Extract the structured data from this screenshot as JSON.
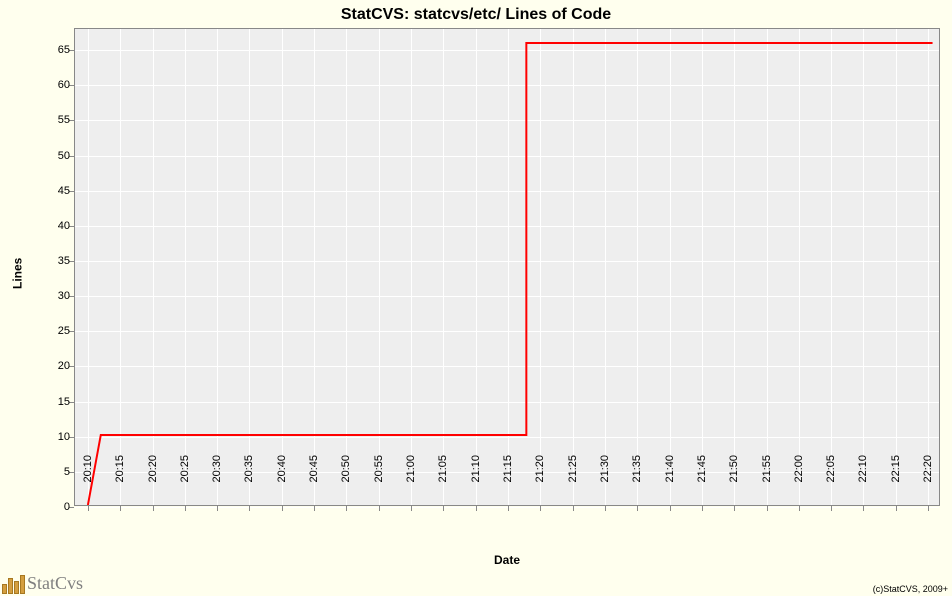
{
  "chart": {
    "type": "step-line",
    "title": "StatCVS: statcvs/etc/ Lines of Code",
    "xlabel": "Date",
    "ylabel": "Lines",
    "background_color": "#ffffee",
    "plot_background": "#eeeeee",
    "grid_color": "#ffffff",
    "border_color": "#888888",
    "line_color": "#ff0000",
    "line_width": 2,
    "title_fontsize": 16,
    "label_fontsize": 12,
    "tick_fontsize": 11,
    "ylim": [
      0,
      68
    ],
    "ytick_step": 5,
    "yticks": [
      0,
      5,
      10,
      15,
      20,
      25,
      30,
      35,
      40,
      45,
      50,
      55,
      60,
      65
    ],
    "xticks": [
      "20:10",
      "20:15",
      "20:20",
      "20:25",
      "20:30",
      "20:35",
      "20:40",
      "20:45",
      "20:50",
      "20:55",
      "21:00",
      "21:05",
      "21:10",
      "21:15",
      "21:20",
      "21:25",
      "21:30",
      "21:35",
      "21:40",
      "21:45",
      "21:50",
      "21:55",
      "22:00",
      "22:05",
      "22:10",
      "22:15",
      "22:20"
    ],
    "data_points": [
      {
        "x": "20:10",
        "y": 0
      },
      {
        "x": "20:12",
        "y": 10
      },
      {
        "x": "21:18",
        "y": 10
      },
      {
        "x": "21:18",
        "y": 66
      },
      {
        "x": "22:21",
        "y": 66
      }
    ]
  },
  "footer": {
    "logo_text": "StatCvs",
    "logo_bar_heights": [
      10,
      16,
      13,
      19
    ],
    "logo_bar_color": "#d49e3e",
    "copyright": "(c)StatCVS, 2009+"
  }
}
